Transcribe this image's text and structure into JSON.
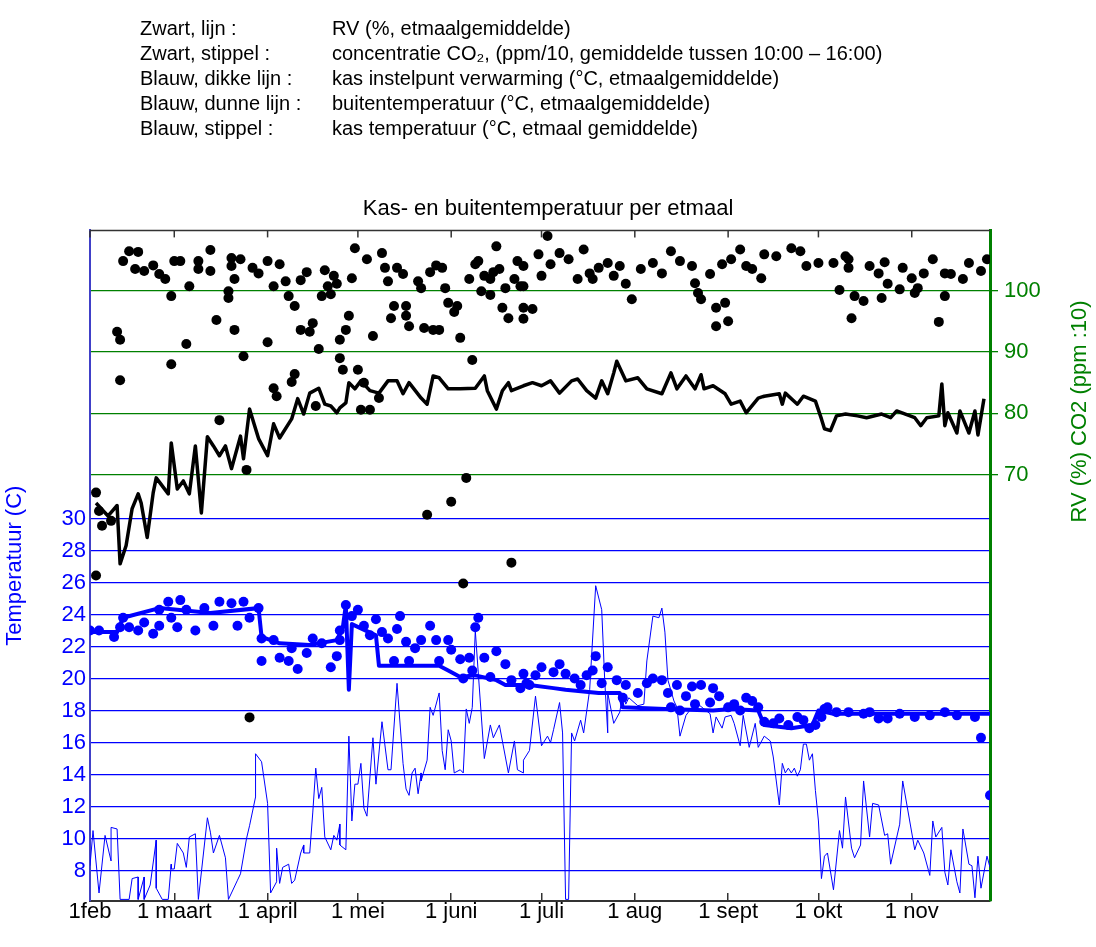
{
  "chart_data": {
    "type": "line",
    "title": "Kas- en buitentemperatuur per etmaal",
    "ylabel": "Temperatuur (C)",
    "y2label": "RV (%) CO2 (ppm :10)",
    "annotations": [
      "Zwart, lijn :",
      "RV (%, etmaalgemiddelde)",
      "Zwart, stippel :",
      "concentratie CO₂, (ppm/10, gemiddelde tussen 10:00 – 16:00)",
      "Blauw, dikke lijn :",
      "kas instelpunt verwarming (°C, etmaalgemiddelde)",
      "Blauw, dunne lijn :",
      "buitentemperatuur (°C, etmaalgemiddelde)",
      "Blauw, stippel :",
      "kas temperatuur (°C, etmaal gemiddelde)"
    ],
    "xlim": [
      "--02-01",
      "--11-27"
    ],
    "xticks": [
      {
        "value": "--02-01",
        "label": "1feb"
      },
      {
        "value": "--03-01",
        "label": "1 maart"
      },
      {
        "value": "--04-01",
        "label": "1 april"
      },
      {
        "value": "--05-01",
        "label": "1 mei"
      },
      {
        "value": "--06-01",
        "label": "1 juni"
      },
      {
        "value": "--07-01",
        "label": "1 juli"
      },
      {
        "value": "--08-01",
        "label": "1 aug"
      },
      {
        "value": "--09-01",
        "label": "1 sept"
      },
      {
        "value": "--10-01",
        "label": "1 okt"
      },
      {
        "value": "--11-01",
        "label": "1 nov"
      }
    ],
    "ylim": [
      6.1,
      48
    ],
    "yticks": [
      8,
      10,
      12,
      14,
      16,
      18,
      20,
      22,
      24,
      26,
      28,
      30
    ],
    "y2lim": [
      0.6,
      109.8
    ],
    "y2ticks": [
      70,
      80,
      90,
      100
    ],
    "grid": "y",
    "legend": false,
    "series": [
      {
        "type": "scatter",
        "axis": "y2",
        "color": "#000000",
        "marker": "circle",
        "x": [
          "--02-03",
          "--02-04",
          "--02-05",
          "--02-08",
          "--02-10",
          "--02-11",
          "--02-11",
          "--02-12",
          "--02-14",
          "--02-17",
          "--02-16",
          "--02-19",
          "--02-22",
          "--02-24",
          "--02-26",
          "--02-28",
          "--02-28",
          "--03-01",
          "--03-03",
          "--03-05",
          "--03-06",
          "--03-09",
          "--03-09",
          "--03-13",
          "--03-13",
          "--03-15",
          "--03-16",
          "--03-19",
          "--03-19",
          "--03-20",
          "--03-20",
          "--03-21",
          "--03-21",
          "--03-23",
          "--03-24",
          "--03-25",
          "--03-27",
          "--03-29",
          "--04-01",
          "--04-01",
          "--04-03",
          "--04-03",
          "--04-04",
          "--04-05",
          "--04-07",
          "--04-08",
          "--04-09",
          "--04-10",
          "--04-10",
          "--04-12",
          "--04-12",
          "--04-14",
          "--04-15",
          "--04-16",
          "--04-17",
          "--04-18",
          "--04-19",
          "--04-20",
          "--04-21",
          "--04-22",
          "--04-23",
          "--04-24",
          "--04-25",
          "--04-25",
          "--04-26",
          "--04-27",
          "--04-28",
          "--04-29",
          "--04-30",
          "--05-01",
          "--05-02",
          "--05-03",
          "--05-04",
          "--05-05",
          "--05-06",
          "--05-08",
          "--05-09",
          "--05-10",
          "--05-11",
          "--05-12",
          "--05-13",
          "--05-14",
          "--05-16",
          "--05-17",
          "--05-17",
          "--05-18",
          "--05-21",
          "--05-22",
          "--05-23",
          "--05-24",
          "--05-25",
          "--05-26",
          "--05-27",
          "--05-28",
          "--05-29",
          "--05-30",
          "--05-31",
          "--06-01",
          "--06-02",
          "--06-03",
          "--06-04",
          "--06-06",
          "--06-07",
          "--06-08",
          "--06-09",
          "--06-10",
          "--06-11",
          "--06-12",
          "--06-14",
          "--06-14",
          "--06-15",
          "--06-16",
          "--06-17",
          "--06-18",
          "--06-19",
          "--06-20",
          "--06-21",
          "--06-22",
          "--06-23",
          "--06-24",
          "--06-25",
          "--06-25",
          "--02-03",
          "--06-05",
          "--03-26",
          "--06-25",
          "--06-25",
          "--06-28",
          "--06-30",
          "--07-03",
          "--07-01",
          "--07-04",
          "--07-07",
          "--07-10",
          "--07-13",
          "--07-15",
          "--07-17",
          "--07-18",
          "--07-20",
          "--07-23",
          "--07-25",
          "--07-27",
          "--07-29",
          "--07-31",
          "--08-03",
          "--08-07",
          "--08-10",
          "--08-13",
          "--08-16",
          "--08-20",
          "--08-21",
          "--08-22",
          "--08-23",
          "--08-26",
          "--08-28",
          "--08-31",
          "--08-28",
          "--09-01",
          "--08-30",
          "--09-02",
          "--09-05",
          "--09-07",
          "--09-09",
          "--09-12",
          "--09-13",
          "--09-17",
          "--09-22",
          "--09-25",
          "--09-27",
          "--10-01",
          "--10-06",
          "--10-08",
          "--10-10",
          "--10-11",
          "--10-11",
          "--10-13",
          "--10-12",
          "--10-16",
          "--10-18",
          "--10-21",
          "--10-22",
          "--10-23",
          "--10-24",
          "--10-28",
          "--10-29",
          "--11-02",
          "--11-03",
          "--11-01",
          "--11-05",
          "--11-08",
          "--11-10",
          "--11-12",
          "--11-12",
          "--11-14",
          "--11-18",
          "--11-20",
          "--11-24",
          "--11-26"
        ],
        "values": [
          67.1,
          64.1,
          61.7,
          62.5,
          93.3,
          92,
          85.4,
          104.8,
          106.4,
          106.3,
          103.5,
          103.2,
          104.1,
          102.7,
          101.9,
          99.1,
          88,
          104.8,
          104.8,
          91.3,
          100.7,
          104.8,
          103.5,
          103.2,
          106.6,
          95.2,
          78.9,
          99.9,
          98.8,
          105.3,
          104,
          101.9,
          93.6,
          105.1,
          89.3,
          70.8,
          103.7,
          102.8,
          91.6,
          104.8,
          100.7,
          84.1,
          82.8,
          104.3,
          101.5,
          99.1,
          85.1,
          97.5,
          86.4,
          93.6,
          101.7,
          103,
          93.3,
          94.7,
          81.2,
          90.5,
          99.1,
          103.3,
          100.7,
          99.4,
          102.4,
          101.1,
          92,
          89,
          87.1,
          93.6,
          95.9,
          102,
          106.9,
          87.1,
          80.6,
          85,
          105.1,
          80.6,
          92.6,
          82.5,
          106.1,
          103.7,
          101.5,
          95.5,
          97.5,
          103.7,
          102.7,
          97.5,
          95.9,
          94.2,
          101.5,
          100.4,
          93.9,
          63.5,
          103,
          93.6,
          104.1,
          93.6,
          103.7,
          100.4,
          98,
          65.6,
          96.5,
          97.5,
          92.3,
          69.5,
          101.9,
          88.7,
          104.3,
          104.8,
          99.9,
          102.4,
          101.9,
          99.3,
          103,
          107.2,
          103.5,
          97.2,
          100.4,
          95.5,
          55.7,
          101.9,
          104.8,
          100.7,
          97.2,
          95.4,
          53.6,
          52.3,
          30.5,
          104,
          100.7,
          97,
          105.9,
          108.9,
          102.4,
          104.3,
          106.1,
          105.1,
          101.9,
          106.7,
          102.8,
          101.9,
          103.7,
          104.5,
          102.4,
          104,
          101.1,
          98.6,
          103.5,
          104.5,
          102.8,
          106.4,
          104.8,
          104,
          101.2,
          99.6,
          98.6,
          102.7,
          97.2,
          98,
          94.2,
          95,
          104.3,
          105.1,
          106.7,
          104,
          103.5,
          102,
          105.9,
          105.6,
          106.9,
          106.4,
          104,
          104.5,
          104.5,
          100.1,
          105.6,
          105.1,
          103.7,
          99.1,
          95.5,
          98.3,
          104,
          102.8,
          98.8,
          104.6,
          101.1,
          100.2,
          103.7,
          99.6,
          100.4,
          102,
          102.8,
          105.1,
          94.9,
          102.8,
          99.1,
          102.7,
          101.9,
          104.5,
          103.2,
          105.1
        ]
      },
      {
        "type": "line",
        "axis": "y2",
        "color": "#000000",
        "marker": "none",
        "line_style": "solid",
        "x": [
          "--02-03",
          "--02-07",
          "--02-10",
          "--02-11",
          "--02-13",
          "--02-15",
          "--02-17",
          "--02-18",
          "--02-20",
          "--02-22",
          "--02-23",
          "--02-27",
          "--02-28",
          "--03-02",
          "--03-04",
          "--03-06",
          "--03-08",
          "--03-10",
          "--03-12",
          "--03-14",
          "--03-16",
          "--03-18",
          "--03-20",
          "--03-23",
          "--03-24",
          "--03-26",
          "--03-29",
          "--04-01",
          "--04-03",
          "--04-05",
          "--04-09",
          "--04-11",
          "--04-13",
          "--04-15",
          "--04-18",
          "--04-20",
          "--04-22",
          "--04-24",
          "--04-25",
          "--04-27",
          "--04-28",
          "--04-30",
          "--05-02",
          "--05-05",
          "--05-08",
          "--05-11",
          "--05-14",
          "--05-16",
          "--05-18",
          "--05-22",
          "--05-24",
          "--05-26",
          "--05-28",
          "--05-31",
          "--06-04",
          "--06-09",
          "--06-12",
          "--06-13",
          "--06-16",
          "--06-18",
          "--06-20",
          "--06-21",
          "--06-25",
          "--06-28",
          "--07-01",
          "--07-04",
          "--07-07",
          "--07-11",
          "--07-13",
          "--07-16",
          "--07-19",
          "--07-21",
          "--07-23",
          "--07-25",
          "--07-26",
          "--07-29",
          "--08-02",
          "--08-05",
          "--08-10",
          "--08-13",
          "--08-15",
          "--08-18",
          "--08-21",
          "--08-23",
          "--08-24",
          "--08-27",
          "--08-31",
          "--09-02",
          "--09-05",
          "--09-07",
          "--09-11",
          "--09-13",
          "--09-18",
          "--09-19",
          "--09-20",
          "--09-24",
          "--09-26",
          "--09-30",
          "--10-02",
          "--10-03",
          "--10-05",
          "--10-07",
          "--10-10",
          "--10-14",
          "--10-17",
          "--10-22",
          "--10-25",
          "--10-27",
          "--11-02",
          "--11-04",
          "--11-06",
          "--11-10",
          "--11-11",
          "--11-12",
          "--11-13",
          "--11-16",
          "--11-17",
          "--11-20",
          "--11-22",
          "--11-23",
          "--11-25"
        ],
        "values": [
          65.4,
          63.3,
          65,
          55.5,
          58.5,
          64.5,
          66.9,
          65.4,
          59.8,
          67.1,
          69.5,
          66.9,
          75.2,
          67.7,
          69,
          66.9,
          74.7,
          63.8,
          76.2,
          74.7,
          73.1,
          74.7,
          71,
          76.3,
          72.6,
          80.7,
          75.9,
          73.1,
          78.3,
          76,
          79.1,
          82.4,
          79.9,
          83.3,
          84.1,
          81.5,
          81.2,
          80.1,
          80.9,
          81.7,
          85,
          84,
          85.3,
          83.7,
          83.3,
          85.3,
          85.3,
          83.2,
          85,
          82.5,
          81.5,
          86.1,
          85.8,
          84,
          84,
          84.1,
          86.1,
          83.7,
          80.7,
          83.7,
          85,
          83.7,
          84.5,
          85,
          84.5,
          85.3,
          83.3,
          85.3,
          85.6,
          83.7,
          82.5,
          85.3,
          83.2,
          86.6,
          88.5,
          85.3,
          85.8,
          84,
          83.2,
          86.6,
          84,
          86.1,
          84,
          86.3,
          84,
          84.5,
          83.2,
          81.5,
          82,
          80.1,
          82.5,
          82.8,
          83.2,
          81.5,
          83.3,
          81.5,
          82.8,
          82,
          79.1,
          77.5,
          77.2,
          79.6,
          79.9,
          79.6,
          79.3,
          79.9,
          79.3,
          80.4,
          79.3,
          78,
          79.3,
          79.6,
          84.8,
          78,
          80.1,
          76.8,
          80.4,
          76.8,
          80.4,
          76.5,
          82.4
        ]
      },
      {
        "type": "line",
        "axis": "y",
        "color": "#0000ff",
        "marker": "none",
        "line_style": "solid",
        "x": [
          "--02-01",
          "--02-02",
          "--02-04",
          "--02-06",
          "--02-08",
          "--02-08",
          "--02-10",
          "--02-11",
          "--02-14",
          "--02-15",
          "--02-17",
          "--02-17",
          "--02-19",
          "--02-19",
          "--02-21",
          "--02-23",
          "--02-23",
          "--02-25",
          "--02-27",
          "--02-28",
          "--02-28",
          "--03-01",
          "--03-02",
          "--03-04",
          "--03-05",
          "--03-06",
          "--03-08",
          "--03-09",
          "--03-12",
          "--03-13",
          "--03-14",
          "--03-16",
          "--03-18",
          "--03-19",
          "--03-22",
          "--03-23",
          "--03-25",
          "--03-26",
          "--03-28",
          "--03-28",
          "--03-30",
          "--04-01",
          "--04-02",
          "--04-04",
          "--04-04",
          "--04-05",
          "--04-06",
          "--04-08",
          "--04-09",
          "--04-10",
          "--04-12",
          "--04-13",
          "--04-13",
          "--04-15",
          "--04-16",
          "--04-17",
          "--04-18",
          "--04-19",
          "--04-20",
          "--04-22",
          "--04-23",
          "--04-24",
          "--04-25",
          "--04-25",
          "--04-27",
          "--04-28",
          "--04-29",
          "--04-30",
          "--05-01",
          "--05-02",
          "--05-03",
          "--05-04",
          "--05-06",
          "--05-07",
          "--05-09",
          "--05-11",
          "--05-12",
          "--05-14",
          "--05-16",
          "--05-17",
          "--05-18",
          "--05-19",
          "--05-20",
          "--05-21",
          "--05-22",
          "--05-22",
          "--05-24",
          "--05-25",
          "--05-26",
          "--05-28",
          "--05-29",
          "--05-30",
          "--05-31",
          "--06-01",
          "--06-02",
          "--06-04",
          "--06-05",
          "--06-06",
          "--06-07",
          "--06-08",
          "--06-09",
          "--06-12",
          "--06-14",
          "--06-15",
          "--06-17",
          "--06-20",
          "--06-22",
          "--06-23",
          "--06-25",
          "--06-25",
          "--06-27",
          "--06-29",
          "--07-01",
          "--07-03",
          "--07-04",
          "--07-05",
          "--07-07",
          "--07-08",
          "--07-09",
          "--07-10",
          "--07-11",
          "--07-12",
          "--07-14",
          "--07-15",
          "--07-17",
          "--07-19",
          "--07-21",
          "--07-22",
          "--07-23",
          "--07-23",
          "--07-25",
          "--07-27",
          "--07-28",
          "--07-29",
          "--07-30",
          "--08-02",
          "--08-04",
          "--08-05",
          "--08-07",
          "--08-09",
          "--08-10",
          "--08-11",
          "--08-12",
          "--08-14",
          "--08-15",
          "--08-16",
          "--08-18",
          "--08-20",
          "--08-22",
          "--08-26",
          "--08-27",
          "--08-28",
          "--08-30",
          "--08-31",
          "--09-02",
          "--09-03",
          "--09-05",
          "--09-06",
          "--09-08",
          "--09-10",
          "--09-11",
          "--09-13",
          "--09-15",
          "--09-16",
          "--09-18",
          "--09-19",
          "--09-20",
          "--09-21",
          "--09-22",
          "--09-23",
          "--09-24",
          "--09-25",
          "--09-26",
          "--09-27",
          "--09-28",
          "--09-29",
          "--09-30",
          "--10-01",
          "--10-02",
          "--10-03",
          "--10-04",
          "--10-06",
          "--10-08",
          "--10-09",
          "--10-10",
          "--10-12",
          "--10-13",
          "--10-15",
          "--10-16",
          "--10-18",
          "--10-19",
          "--10-21",
          "--10-23",
          "--10-24",
          "--10-25",
          "--10-28",
          "--10-29",
          "--11-02",
          "--11-03",
          "--11-05",
          "--11-07",
          "--11-08",
          "--11-09",
          "--11-11",
          "--11-12",
          "--11-13",
          "--11-14",
          "--11-16",
          "--11-17",
          "--11-18",
          "--11-20",
          "--11-21",
          "--11-22",
          "--11-23",
          "--11-24",
          "--11-26",
          "--11-27"
        ],
        "values": [
          8.3,
          10.5,
          6.6,
          10.2,
          8.6,
          10.7,
          10.6,
          6.2,
          6.2,
          7.5,
          7.6,
          6.2,
          7.6,
          6.2,
          7.1,
          9.9,
          6.9,
          6.2,
          6.2,
          8.4,
          8.1,
          8.1,
          9.7,
          9.1,
          8.2,
          10.1,
          10.3,
          6.2,
          11.3,
          10.4,
          9.1,
          10.2,
          8.8,
          6.2,
          7.4,
          7.8,
          10,
          10.8,
          12.6,
          15.3,
          14.8,
          12.2,
          6.6,
          7.3,
          9.4,
          7.2,
          8.2,
          8.4,
          7.2,
          7.4,
          9.1,
          9.6,
          9.1,
          9.1,
          11.6,
          14.4,
          12.5,
          13.2,
          10.1,
          9.3,
          10.2,
          9.9,
          10.9,
          9.6,
          9.3,
          16.4,
          11.1,
          13.4,
          13.4,
          14.7,
          11.9,
          11.4,
          16.3,
          13.4,
          17.3,
          14.3,
          14.3,
          19.7,
          14.7,
          13.1,
          12.7,
          14.1,
          14.4,
          12.8,
          14.1,
          13.6,
          14.9,
          18.2,
          17.7,
          19.1,
          15.5,
          14.3,
          16.8,
          16.1,
          14.1,
          14.3,
          14.1,
          18.1,
          17.2,
          18.2,
          23,
          15,
          17.1,
          16.3,
          17.1,
          14.1,
          16.1,
          14.3,
          14.1,
          14.9,
          15.5,
          18.9,
          15.8,
          16.4,
          16,
          16.8,
          18.5,
          16.6,
          6.2,
          6.2,
          16.6,
          16.1,
          17.4,
          16.6,
          19.3,
          25.8,
          24.3,
          19.9,
          16.6,
          19.1,
          17.2,
          17.9,
          19.1,
          18.4,
          18.8,
          18.3,
          18.4,
          21.1,
          23.9,
          23.8,
          24.4,
          22.9,
          19.9,
          18.6,
          18.2,
          16.4,
          17.7,
          18.2,
          18.4,
          17.8,
          16.6,
          17.6,
          16.9,
          17.6,
          17.7,
          17.2,
          15.8,
          17.7,
          15.7,
          17.2,
          15.7,
          16.4,
          16.1,
          15.1,
          12.1,
          14.7,
          14.1,
          14.4,
          14.1,
          14.4,
          13.9,
          14.3,
          15.9,
          15.9,
          14.9,
          15.3,
          13,
          11.1,
          7.5,
          8.9,
          9.1,
          6.8,
          10.5,
          9.4,
          12.6,
          9.4,
          8.8,
          9.6,
          13.6,
          10.1,
          12.2,
          12.1,
          10.2,
          10.3,
          8.4,
          10.9,
          13.6,
          9.3,
          9.9,
          9.1,
          7.7,
          11.1,
          10.1,
          10.7,
          7.9,
          7.1,
          9.3,
          7.3,
          6.6,
          10.6,
          8.4,
          8.3,
          6.3,
          8.9,
          6.9,
          8.9,
          8.2
        ]
      },
      {
        "type": "line",
        "axis": "y",
        "color": "#0000ff",
        "marker": "none",
        "line_style": "solid",
        "x": [
          "--02-01",
          "--02-10",
          "--02-12",
          "--02-24",
          "--03-02",
          "--03-13",
          "--03-29",
          "--03-30",
          "--04-05",
          "--04-15",
          "--04-24",
          "--04-26",
          "--04-27",
          "--04-28",
          "--04-29",
          "--05-07",
          "--05-08",
          "--05-17",
          "--05-28",
          "--05-31",
          "--06-04",
          "--06-09",
          "--06-16",
          "--06-19",
          "--06-27",
          "--07-05",
          "--07-09",
          "--07-20",
          "--07-27",
          "--07-28",
          "--08-11",
          "--08-27",
          "--09-02",
          "--09-11",
          "--09-13",
          "--09-22",
          "--09-29",
          "--10-01",
          "--10-06",
          "--11-27"
        ],
        "values": [
          22.9,
          22.9,
          23.8,
          24.4,
          24.3,
          24.1,
          24.4,
          22.6,
          22.2,
          22.1,
          22.4,
          23.2,
          24.6,
          19.3,
          23.4,
          22.7,
          20.8,
          20.8,
          20.8,
          20.5,
          20.1,
          20.2,
          19.9,
          19.6,
          19.6,
          19.4,
          19.3,
          19.1,
          19.1,
          18.2,
          18.1,
          18,
          18.1,
          18,
          17.1,
          16.9,
          17.1,
          18,
          17.8,
          17.8
        ]
      },
      {
        "type": "scatter",
        "axis": "y",
        "color": "#0000ff",
        "marker": "circle",
        "x": [
          "--02-01",
          "--02-04",
          "--02-09",
          "--02-11",
          "--02-12",
          "--02-14",
          "--02-17",
          "--02-19",
          "--02-22",
          "--02-24",
          "--02-24",
          "--02-27",
          "--02-28",
          "--03-02",
          "--03-03",
          "--03-05",
          "--03-08",
          "--03-11",
          "--03-14",
          "--03-16",
          "--03-20",
          "--03-22",
          "--03-24",
          "--03-26",
          "--03-29",
          "--03-30",
          "--03-30",
          "--04-03",
          "--04-05",
          "--04-08",
          "--04-09",
          "--04-11",
          "--04-14",
          "--04-16",
          "--04-19",
          "--04-22",
          "--04-24",
          "--04-25",
          "--04-25",
          "--04-27",
          "--04-29",
          "--05-01",
          "--05-03",
          "--05-05",
          "--05-07",
          "--05-09",
          "--05-11",
          "--05-13",
          "--05-14",
          "--05-15",
          "--05-17",
          "--05-18",
          "--05-20",
          "--05-22",
          "--05-25",
          "--05-27",
          "--05-28",
          "--05-31",
          "--06-01",
          "--06-04",
          "--06-05",
          "--06-07",
          "--06-08",
          "--06-09",
          "--06-10",
          "--06-12",
          "--06-14",
          "--06-16",
          "--06-19",
          "--06-21",
          "--06-24",
          "--06-25",
          "--06-26",
          "--06-27",
          "--06-29",
          "--07-01",
          "--07-05",
          "--07-07",
          "--07-09",
          "--07-12",
          "--07-14",
          "--07-16",
          "--07-18",
          "--07-19",
          "--07-21",
          "--07-23",
          "--07-26",
          "--07-28",
          "--07-29",
          "--08-02",
          "--08-05",
          "--08-07",
          "--08-10",
          "--08-12",
          "--08-13",
          "--08-15",
          "--08-16",
          "--08-18",
          "--08-20",
          "--08-21",
          "--08-23",
          "--08-26",
          "--08-27",
          "--08-29",
          "--09-01",
          "--09-03",
          "--09-05",
          "--09-07",
          "--09-09",
          "--09-11",
          "--09-13",
          "--09-16",
          "--09-18",
          "--09-21",
          "--09-24",
          "--09-26",
          "--09-28",
          "--09-30",
          "--10-02",
          "--10-03",
          "--10-04",
          "--10-07",
          "--10-11",
          "--10-16",
          "--10-18",
          "--10-21",
          "--10-24",
          "--10-28",
          "--11-02",
          "--11-07",
          "--11-12",
          "--11-16",
          "--11-22",
          "--11-24",
          "--11-27"
        ],
        "values": [
          23,
          23,
          22.6,
          23.2,
          23.8,
          23.2,
          23,
          23.5,
          22.8,
          23.3,
          24.3,
          24.8,
          23.8,
          23.2,
          24.9,
          24.3,
          23,
          24.4,
          23.3,
          24.8,
          24.7,
          23.3,
          24.8,
          23.8,
          24.4,
          22.5,
          21.1,
          22.4,
          21.3,
          21.1,
          21.9,
          20.6,
          21.6,
          22.5,
          22.2,
          20.7,
          21.4,
          22.4,
          23,
          24.6,
          23.9,
          24.3,
          23.3,
          22.7,
          23.7,
          22.9,
          22.5,
          21.1,
          23.1,
          23.9,
          22.3,
          21.1,
          21.9,
          22.4,
          23.3,
          22.4,
          21.1,
          22.4,
          21.8,
          21.2,
          20,
          21.3,
          20.5,
          23.2,
          23.8,
          21.3,
          20.1,
          21.7,
          20.9,
          19.9,
          19.4,
          20.3,
          19.7,
          19.6,
          20.2,
          20.7,
          20.4,
          20.9,
          20.3,
          20,
          19.6,
          20.2,
          20.5,
          21.4,
          19.7,
          20.7,
          19.9,
          18.8,
          19.6,
          19.1,
          19.7,
          20,
          19.9,
          19.1,
          18.2,
          19.6,
          18,
          18.9,
          19.5,
          18.4,
          19.6,
          18.5,
          19.4,
          18.9,
          18.2,
          18.4,
          18,
          18.8,
          18.6,
          18.2,
          17.3,
          17.2,
          17.5,
          17.1,
          17.6,
          17.4,
          16.9,
          17.1,
          17.6,
          18.1,
          18.2,
          17.9,
          17.9,
          17.8,
          17.9,
          17.5,
          17.5,
          17.8,
          17.6,
          17.7,
          17.9,
          17.7,
          17.6,
          16.3,
          12.7
        ]
      }
    ]
  }
}
